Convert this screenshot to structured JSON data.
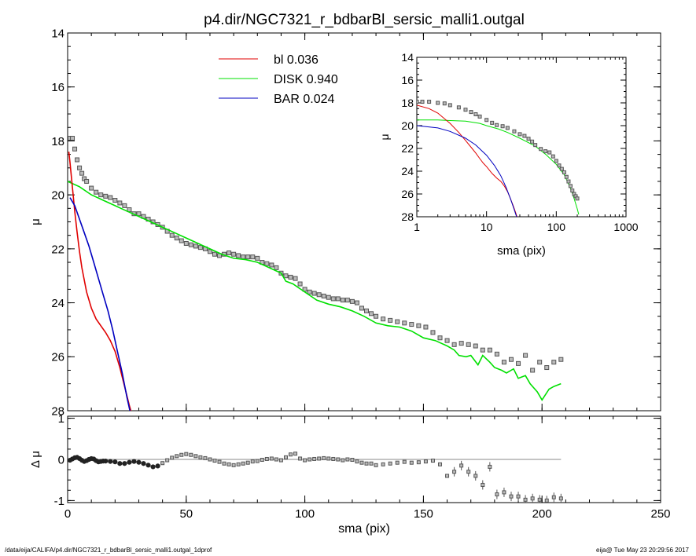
{
  "title": "p4.dir/NGC7321_r_bdbarBl_sersic_malli1.outgal",
  "footer": {
    "left": "/data/eija/CALIFA/p4.dir/NGC7321_r_bdbarBl_sersic_malli1.outgal_1dprof",
    "right": "eija@  Tue May 23 20:29:56 2017"
  },
  "colors": {
    "bl": "#e00000",
    "disk": "#00e000",
    "bar": "#0000c0",
    "data": "#555555"
  },
  "legend": [
    {
      "label": "bl",
      "value": "0.036",
      "color": "#e00000"
    },
    {
      "label": "DISK",
      "value": "0.940",
      "color": "#00e000"
    },
    {
      "label": "BAR",
      "value": "0.024",
      "color": "#0000c0"
    }
  ],
  "chart_data": [
    {
      "id": "main",
      "type": "line",
      "xlabel": "sma (pix)",
      "ylabel": "μ",
      "xlim": [
        0,
        250
      ],
      "ylim": [
        28,
        14
      ],
      "xticks": [
        0,
        50,
        100,
        150,
        200,
        250
      ],
      "yticks": [
        14,
        16,
        18,
        20,
        22,
        24,
        26,
        28
      ],
      "series": [
        {
          "name": "bl",
          "color": "#e00000",
          "x": [
            0.5,
            1,
            2,
            3,
            4,
            5,
            6,
            8,
            10,
            12,
            14,
            16,
            18,
            20,
            22,
            24,
            26,
            27
          ],
          "y": [
            18.4,
            18.8,
            19.7,
            20.6,
            21.4,
            22.1,
            22.7,
            23.6,
            24.2,
            24.6,
            24.85,
            25.1,
            25.4,
            25.8,
            26.4,
            27.1,
            27.8,
            28.1
          ]
        },
        {
          "name": "DISK",
          "color": "#00e000",
          "x": [
            0,
            5,
            10,
            15,
            20,
            25,
            30,
            35,
            40,
            45,
            50,
            55,
            60,
            65,
            70,
            75,
            80,
            85,
            90,
            92,
            95,
            100,
            105,
            110,
            115,
            120,
            125,
            130,
            135,
            140,
            145,
            150,
            155,
            160,
            163,
            165,
            168,
            170,
            173,
            175,
            178,
            180,
            183,
            185,
            188,
            190,
            193,
            195,
            198,
            200,
            203,
            205,
            208
          ],
          "y": [
            19.5,
            19.7,
            20.0,
            20.2,
            20.4,
            20.6,
            20.8,
            21.0,
            21.2,
            21.4,
            21.6,
            21.8,
            22.0,
            22.2,
            22.35,
            22.4,
            22.5,
            22.7,
            22.9,
            23.2,
            23.3,
            23.6,
            23.9,
            24.05,
            24.15,
            24.3,
            24.5,
            24.75,
            24.85,
            24.9,
            25.05,
            25.3,
            25.4,
            25.6,
            25.75,
            25.95,
            26.0,
            25.95,
            26.3,
            25.95,
            26.2,
            26.4,
            26.5,
            26.6,
            26.45,
            26.8,
            26.7,
            27.0,
            27.3,
            27.6,
            27.2,
            27.1,
            27.0
          ]
        },
        {
          "name": "BAR",
          "color": "#0000c0",
          "x": [
            1,
            3,
            5,
            7,
            9,
            11,
            13,
            15,
            17,
            19,
            21,
            23,
            25,
            26.5
          ],
          "y": [
            20.1,
            20.4,
            20.9,
            21.4,
            21.9,
            22.5,
            23.1,
            23.7,
            24.3,
            25.0,
            25.8,
            26.6,
            27.5,
            28.1
          ]
        },
        {
          "name": "",
          "color": "#555555",
          "style": "markers",
          "x": [
            1,
            2,
            3,
            4,
            5,
            6,
            7,
            8,
            10,
            12,
            14,
            16,
            18,
            20,
            22,
            24,
            26,
            28,
            30,
            32,
            34,
            36,
            38,
            40,
            42,
            44,
            46,
            48,
            50,
            52,
            54,
            56,
            58,
            60,
            62,
            64,
            66,
            68,
            70,
            72,
            74,
            76,
            78,
            80,
            82,
            84,
            86,
            88,
            90,
            92,
            94,
            96,
            98,
            100,
            102,
            104,
            106,
            108,
            110,
            112,
            114,
            116,
            118,
            120,
            122,
            124,
            126,
            128,
            130,
            133,
            136,
            139,
            142,
            145,
            148,
            151,
            154,
            157,
            160,
            163,
            166,
            169,
            172,
            175,
            178,
            181,
            184,
            187,
            190,
            193,
            196,
            199,
            202,
            205,
            208
          ],
          "y": [
            17.9,
            17.9,
            18.3,
            18.7,
            19.0,
            19.2,
            19.4,
            19.5,
            19.75,
            19.9,
            20.0,
            20.05,
            20.1,
            20.2,
            20.3,
            20.4,
            20.55,
            20.7,
            20.7,
            20.8,
            20.9,
            21.0,
            21.1,
            21.2,
            21.35,
            21.5,
            21.6,
            21.7,
            21.8,
            21.85,
            21.9,
            21.95,
            22.0,
            22.1,
            22.2,
            22.25,
            22.2,
            22.15,
            22.2,
            22.25,
            22.3,
            22.3,
            22.3,
            22.35,
            22.5,
            22.55,
            22.6,
            22.7,
            22.9,
            23.0,
            23.05,
            23.1,
            23.3,
            23.5,
            23.6,
            23.65,
            23.7,
            23.75,
            23.8,
            23.85,
            23.85,
            23.9,
            23.9,
            23.95,
            24.0,
            24.2,
            24.3,
            24.4,
            24.5,
            24.6,
            24.65,
            24.7,
            24.75,
            24.8,
            24.85,
            24.9,
            25.1,
            25.3,
            25.4,
            25.55,
            25.5,
            25.55,
            25.6,
            25.75,
            25.75,
            25.9,
            26.2,
            26.1,
            26.25,
            25.95,
            26.5,
            26.2,
            26.4,
            26.2,
            26.1
          ]
        }
      ]
    },
    {
      "id": "residual",
      "type": "scatter",
      "xlabel": "sma (pix)",
      "ylabel": "Δ μ",
      "xlim": [
        0,
        250
      ],
      "ylim": [
        -1.05,
        1.05
      ],
      "xticks": [
        0,
        50,
        100,
        150,
        200,
        250
      ],
      "yticks": [
        -1,
        0,
        1
      ],
      "zero_line_x": [
        0,
        208
      ],
      "series": [
        {
          "name": "",
          "color": "#555555",
          "x": [
            1,
            2,
            3,
            4,
            5,
            6,
            7,
            8,
            9,
            10,
            11,
            12,
            13,
            14,
            15,
            16,
            18,
            20,
            22,
            24,
            26,
            28,
            30,
            32,
            34,
            36,
            38,
            40,
            42,
            44,
            46,
            48,
            50,
            52,
            54,
            56,
            58,
            60,
            62,
            64,
            66,
            68,
            70,
            72,
            74,
            76,
            78,
            80,
            82,
            84,
            86,
            88,
            90,
            92,
            94,
            96,
            98,
            100,
            102,
            104,
            106,
            108,
            110,
            112,
            114,
            116,
            118,
            120,
            122,
            124,
            126,
            128,
            130,
            133,
            136,
            139,
            142,
            145,
            148,
            151,
            154,
            157,
            160,
            163,
            166,
            169,
            172,
            175,
            178,
            181,
            184,
            187,
            190,
            193,
            196,
            199,
            202,
            205,
            208
          ],
          "y": [
            -0.02,
            0.01,
            0.04,
            0.05,
            0.02,
            -0.02,
            -0.05,
            -0.03,
            0.0,
            0.02,
            0.01,
            -0.03,
            -0.06,
            -0.05,
            -0.04,
            -0.04,
            -0.05,
            -0.06,
            -0.1,
            -0.1,
            -0.07,
            -0.05,
            -0.07,
            -0.1,
            -0.14,
            -0.18,
            -0.16,
            -0.09,
            -0.02,
            0.04,
            0.08,
            0.11,
            0.13,
            0.11,
            0.08,
            0.05,
            0.03,
            0.0,
            -0.03,
            -0.06,
            -0.1,
            -0.12,
            -0.14,
            -0.12,
            -0.1,
            -0.08,
            -0.05,
            -0.04,
            -0.01,
            0.01,
            0.02,
            0.0,
            -0.02,
            0.05,
            0.12,
            0.14,
            0.02,
            -0.02,
            0.0,
            0.01,
            0.02,
            0.03,
            0.02,
            0.01,
            0.0,
            -0.02,
            0.0,
            -0.01,
            -0.05,
            -0.08,
            -0.1,
            -0.1,
            -0.14,
            -0.12,
            -0.1,
            -0.08,
            -0.06,
            -0.08,
            -0.07,
            -0.05,
            -0.03,
            -0.12,
            -0.4,
            -0.3,
            -0.15,
            -0.3,
            -0.4,
            -0.62,
            -0.18,
            -0.85,
            -0.8,
            -0.9,
            -0.9,
            -0.98,
            -0.95,
            -0.98,
            -1.0,
            -0.92,
            -0.95
          ]
        }
      ]
    },
    {
      "id": "inset",
      "type": "line",
      "xlabel": "sma (pix)",
      "ylabel": "μ",
      "xscale": "log",
      "xlim": [
        1,
        1000
      ],
      "ylim": [
        28,
        14
      ],
      "xticks": [
        1,
        10,
        100,
        1000
      ],
      "xticklabels": [
        "1",
        "10",
        "100",
        "1000"
      ],
      "yticks": [
        14,
        16,
        18,
        20,
        22,
        24,
        26,
        28
      ],
      "series": [
        {
          "name": "bl",
          "color": "#e00000",
          "x": [
            1,
            1.5,
            2,
            3,
            4,
            5,
            6,
            7,
            8,
            9,
            10,
            12,
            14,
            16,
            18,
            20,
            22,
            24,
            26,
            28
          ],
          "y": [
            18.2,
            18.5,
            18.9,
            19.8,
            20.6,
            21.3,
            21.9,
            22.4,
            22.9,
            23.3,
            23.6,
            24.2,
            24.6,
            24.9,
            25.3,
            25.8,
            26.4,
            27.0,
            27.6,
            28.2
          ]
        },
        {
          "name": "DISK",
          "color": "#00e000",
          "x": [
            1,
            2,
            3,
            5,
            8,
            10,
            15,
            20,
            30,
            50,
            70,
            100,
            130,
            160,
            180,
            200,
            210
          ],
          "y": [
            19.5,
            19.5,
            19.55,
            19.6,
            19.8,
            20.0,
            20.3,
            20.6,
            21.1,
            21.8,
            22.5,
            23.4,
            24.3,
            25.5,
            26.4,
            27.3,
            27.8
          ]
        },
        {
          "name": "BAR",
          "color": "#0000c0",
          "x": [
            1,
            2,
            3,
            5,
            7,
            10,
            13,
            16,
            19,
            22,
            25,
            28
          ],
          "y": [
            20.0,
            20.2,
            20.5,
            21.1,
            21.7,
            22.6,
            23.5,
            24.4,
            25.4,
            26.4,
            27.4,
            28.3
          ]
        },
        {
          "name": "",
          "color": "#555555",
          "style": "markers",
          "x": [
            1,
            1.2,
            1.5,
            2,
            2.5,
            3,
            4,
            5,
            6,
            7,
            8,
            10,
            12,
            14,
            17,
            20,
            25,
            30,
            35,
            40,
            45,
            50,
            60,
            70,
            80,
            90,
            100,
            110,
            120,
            130,
            140,
            150,
            160,
            170,
            180,
            190,
            200
          ],
          "y": [
            17.9,
            17.9,
            17.9,
            18.0,
            18.05,
            18.2,
            18.4,
            18.6,
            18.8,
            19.0,
            19.2,
            19.5,
            19.75,
            19.95,
            20.05,
            20.2,
            20.5,
            20.75,
            20.9,
            21.15,
            21.4,
            21.7,
            22.05,
            22.25,
            22.35,
            22.7,
            23.1,
            23.5,
            23.8,
            24.1,
            24.5,
            24.9,
            25.3,
            25.7,
            26.0,
            26.2,
            26.4
          ]
        }
      ]
    }
  ]
}
